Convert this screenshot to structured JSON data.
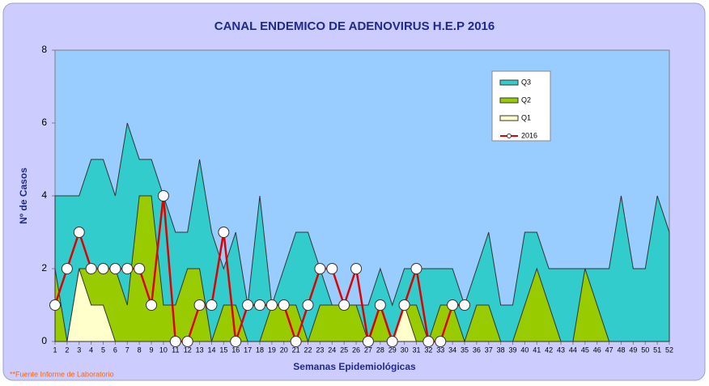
{
  "chart_data": {
    "type": "area-line",
    "title": "CANAL ENDEMICO DE ADENOVIRUS H.E.P 2016",
    "y_label": "Nº de Casos",
    "x_label": "Semanas Epidemiológicas",
    "footnote": "**Fuente Informe de Laboratorio",
    "x": [
      1,
      2,
      3,
      4,
      5,
      6,
      7,
      8,
      9,
      10,
      11,
      12,
      13,
      14,
      15,
      16,
      17,
      18,
      19,
      20,
      21,
      22,
      23,
      24,
      25,
      26,
      27,
      28,
      29,
      30,
      31,
      32,
      33,
      34,
      35,
      36,
      37,
      38,
      39,
      40,
      41,
      42,
      43,
      44,
      45,
      46,
      47,
      48,
      49,
      50,
      51,
      52
    ],
    "xlim": [
      1,
      52
    ],
    "ylim": [
      0,
      8
    ],
    "yticks": [
      0,
      2,
      4,
      6,
      8
    ],
    "legend": "upper right",
    "series": [
      {
        "name": "Q3",
        "kind": "area",
        "color": "#33cccc",
        "values": [
          4,
          4,
          4,
          5,
          5,
          4,
          6,
          5,
          5,
          4,
          3,
          3,
          5,
          3,
          2,
          3,
          1,
          4,
          1,
          2,
          3,
          3,
          2,
          1,
          1,
          1,
          1,
          2,
          1,
          2,
          2,
          2,
          2,
          2,
          1,
          2,
          3,
          1,
          1,
          3,
          3,
          2,
          2,
          2,
          2,
          2,
          2,
          4,
          2,
          2,
          4,
          3
        ]
      },
      {
        "name": "Q2",
        "kind": "area",
        "color": "#99cc00",
        "values": [
          2,
          0,
          2,
          2,
          2,
          2,
          1,
          4,
          4,
          1,
          1,
          2,
          2,
          0,
          1,
          1,
          0,
          0,
          1,
          1,
          1,
          0,
          1,
          1,
          1,
          1,
          0,
          1,
          0,
          1,
          1,
          0,
          1,
          1,
          0,
          1,
          1,
          0,
          0,
          1,
          2,
          1,
          0,
          0,
          2,
          1,
          0,
          0,
          0,
          0,
          0,
          0
        ]
      },
      {
        "name": "Q1",
        "kind": "area",
        "color": "#ffffcc",
        "values": [
          0,
          0,
          2,
          1,
          1,
          0,
          0,
          0,
          0,
          0,
          0,
          0,
          0,
          0,
          0,
          0,
          0,
          0,
          0,
          0,
          0,
          0,
          0,
          0,
          0,
          0,
          0,
          0,
          0,
          1,
          0,
          0,
          0,
          0,
          0,
          0,
          0,
          0,
          0,
          0,
          0,
          0,
          0,
          0,
          0,
          0,
          0,
          0,
          0,
          0,
          0,
          0
        ]
      },
      {
        "name": "2016",
        "kind": "line",
        "color": "#e00000",
        "values": [
          1,
          2,
          3,
          2,
          2,
          2,
          2,
          2,
          1,
          4,
          0,
          0,
          1,
          1,
          3,
          0,
          1,
          1,
          1,
          1,
          0,
          1,
          2,
          2,
          1,
          2,
          0,
          1,
          0,
          1,
          2,
          0,
          0,
          1,
          1,
          null,
          null,
          null,
          null,
          null,
          null,
          null,
          null,
          null,
          null,
          null,
          null,
          null,
          null,
          null,
          null,
          null
        ]
      }
    ]
  }
}
